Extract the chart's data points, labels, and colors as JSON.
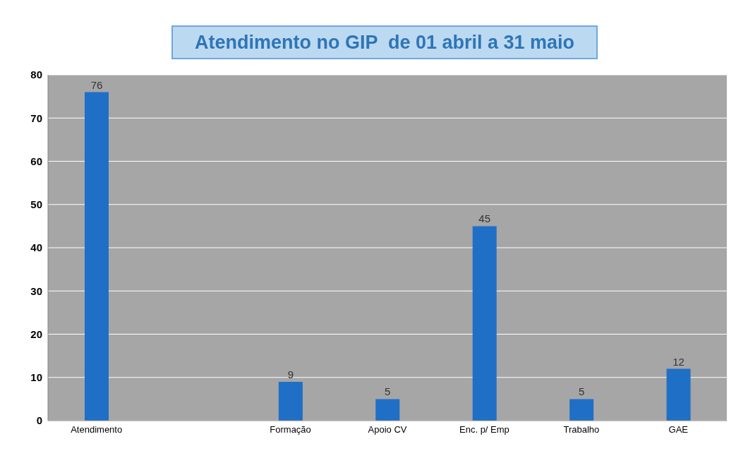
{
  "chart_data": {
    "type": "bar",
    "title": "Atendimento no GIP  de 01 abril a 31 maio",
    "categories": [
      "Atendimento",
      null,
      "Formação",
      "Apoio CV",
      "Enc. p/ Emp",
      "Trabalho",
      "GAE"
    ],
    "values": [
      76,
      null,
      9,
      5,
      45,
      5,
      12
    ],
    "color": "#1f6fc6",
    "ylim": [
      0,
      80
    ],
    "yticks": [
      0,
      10,
      20,
      30,
      40,
      50,
      60,
      70,
      80
    ],
    "grid": "y",
    "data_labels": true
  }
}
